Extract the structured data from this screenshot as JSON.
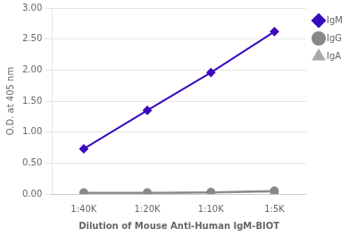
{
  "chart_data": {
    "type": "line",
    "xlabel": "Dilution of Mouse Anti-Human IgM-BIOT",
    "ylabel": "O.D. at 405 nm",
    "categories": [
      "1:40K",
      "1:20K",
      "1:10K",
      "1:5K"
    ],
    "series": [
      {
        "name": "IgM",
        "color": "#3a0abd",
        "marker": "diamond",
        "values": [
          0.73,
          1.35,
          1.96,
          2.62
        ]
      },
      {
        "name": "IgG",
        "color": "#888888",
        "marker": "circle",
        "values": [
          0.02,
          0.02,
          0.03,
          0.05
        ]
      },
      {
        "name": "IgA",
        "color": "#aaaaaa",
        "marker": "triangle",
        "values": [
          0.01,
          0.01,
          0.02,
          0.04
        ]
      }
    ],
    "ylim": [
      0.0,
      3.0
    ],
    "yticks": [
      {
        "value": 0.0,
        "label": "0.00"
      },
      {
        "value": 0.5,
        "label": "0.50"
      },
      {
        "value": 1.0,
        "label": "1.00"
      },
      {
        "value": 1.5,
        "label": "1.50"
      },
      {
        "value": 2.0,
        "label": "2.00"
      },
      {
        "value": 2.5,
        "label": "2.50"
      },
      {
        "value": 3.0,
        "label": "3.00"
      }
    ],
    "grid": "y",
    "legend": "right"
  }
}
